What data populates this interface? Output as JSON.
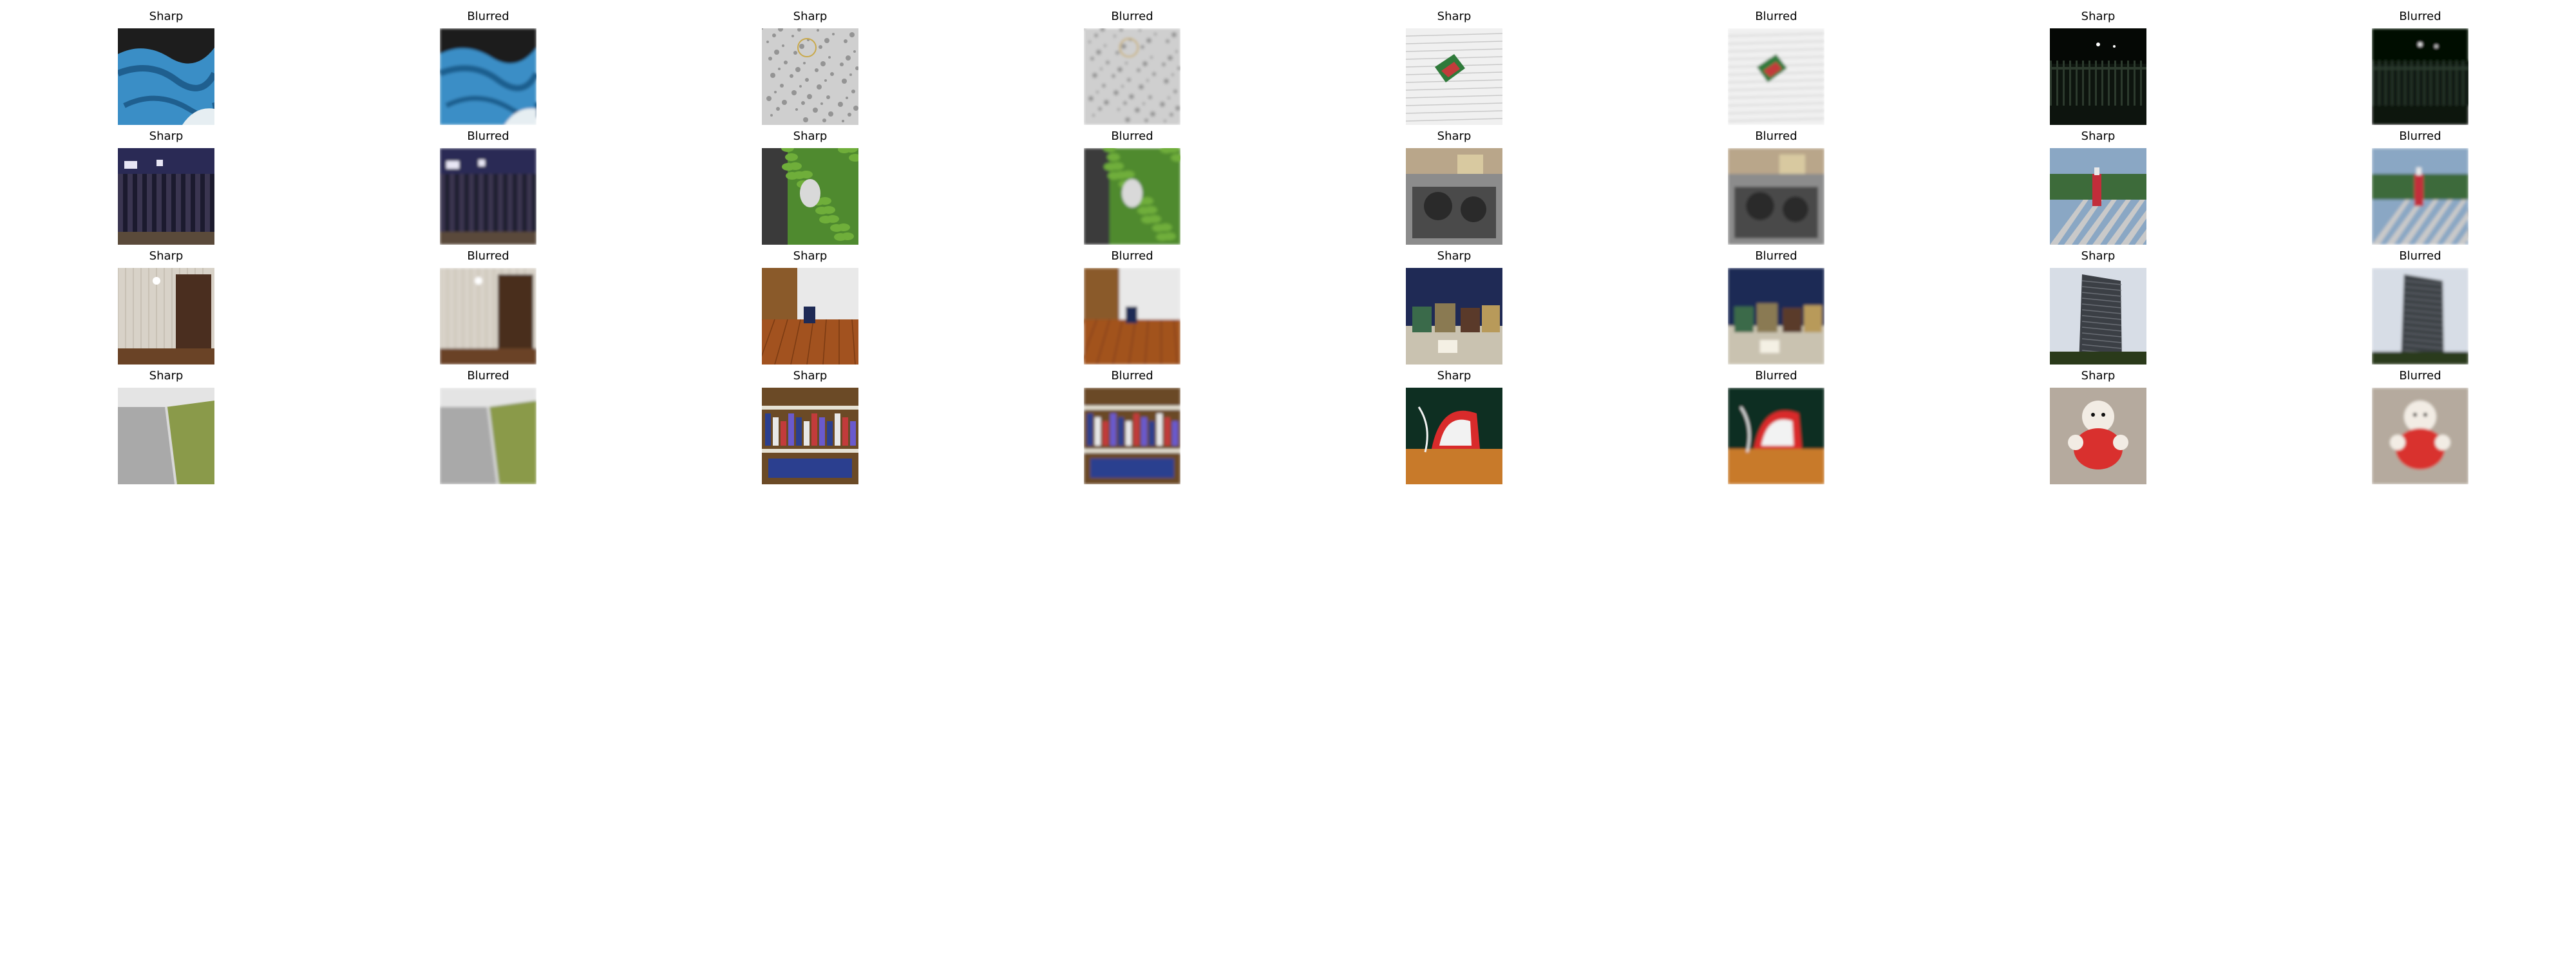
{
  "panels": [
    {
      "title": "Sharp",
      "scene": "blue-fabric",
      "blurred": false,
      "colors": [
        "#3a8ec6",
        "#1f5f8f"
      ]
    },
    {
      "title": "Blurred",
      "scene": "blue-fabric",
      "blurred": true,
      "colors": [
        "#3a8ec6",
        "#1f5f8f"
      ]
    },
    {
      "title": "Sharp",
      "scene": "patterned-cloth",
      "blurred": false,
      "colors": [
        "#cfcfcf",
        "#6d6d6d"
      ]
    },
    {
      "title": "Blurred",
      "scene": "patterned-cloth",
      "blurred": true,
      "colors": [
        "#cfcfcf",
        "#6d6d6d"
      ]
    },
    {
      "title": "Sharp",
      "scene": "wall-with-flag",
      "blurred": false,
      "colors": [
        "#f0f0f0",
        "#c23b3b"
      ]
    },
    {
      "title": "Blurred",
      "scene": "wall-with-flag",
      "blurred": true,
      "colors": [
        "#f0f0f0",
        "#c23b3b"
      ]
    },
    {
      "title": "Sharp",
      "scene": "night-fence",
      "blurred": false,
      "colors": [
        "#0d140e",
        "#2c3a2d"
      ]
    },
    {
      "title": "Blurred",
      "scene": "night-fence",
      "blurred": true,
      "colors": [
        "#0d140e",
        "#2c3a2d"
      ]
    },
    {
      "title": "Sharp",
      "scene": "night-street",
      "blurred": false,
      "colors": [
        "#1b1a2e",
        "#e8e6f5"
      ]
    },
    {
      "title": "Blurred",
      "scene": "night-street",
      "blurred": true,
      "colors": [
        "#1b1a2e",
        "#e8e6f5"
      ]
    },
    {
      "title": "Sharp",
      "scene": "garden-cat",
      "blurred": false,
      "colors": [
        "#4f8a2f",
        "#d9d9d9"
      ]
    },
    {
      "title": "Blurred",
      "scene": "garden-cat",
      "blurred": true,
      "colors": [
        "#4f8a2f",
        "#d9d9d9"
      ]
    },
    {
      "title": "Sharp",
      "scene": "stove-top",
      "blurred": false,
      "colors": [
        "#8c8c8c",
        "#2a2a2a"
      ]
    },
    {
      "title": "Blurred",
      "scene": "stove-top",
      "blurred": true,
      "colors": [
        "#8c8c8c",
        "#2a2a2a"
      ]
    },
    {
      "title": "Sharp",
      "scene": "bottle-on-deck",
      "blurred": false,
      "colors": [
        "#8aa7c4",
        "#c9c9c9"
      ]
    },
    {
      "title": "Blurred",
      "scene": "bottle-on-deck",
      "blurred": true,
      "colors": [
        "#8aa7c4",
        "#c9c9c9"
      ]
    },
    {
      "title": "Sharp",
      "scene": "room-cabinet",
      "blurred": false,
      "colors": [
        "#d8d2c8",
        "#4a2e1f"
      ]
    },
    {
      "title": "Blurred",
      "scene": "room-cabinet",
      "blurred": true,
      "colors": [
        "#d8d2c8",
        "#4a2e1f"
      ]
    },
    {
      "title": "Sharp",
      "scene": "wooden-floor",
      "blurred": false,
      "colors": [
        "#e9e9e9",
        "#a2521f"
      ]
    },
    {
      "title": "Blurred",
      "scene": "wooden-floor",
      "blurred": true,
      "colors": [
        "#e9e9e9",
        "#a2521f"
      ]
    },
    {
      "title": "Sharp",
      "scene": "jars-on-table",
      "blurred": false,
      "colors": [
        "#1f2a55",
        "#8a7a52"
      ]
    },
    {
      "title": "Blurred",
      "scene": "jars-on-table",
      "blurred": true,
      "colors": [
        "#1f2a55",
        "#8a7a52"
      ]
    },
    {
      "title": "Sharp",
      "scene": "tower-block",
      "blurred": false,
      "colors": [
        "#d7dde6",
        "#3b3f45"
      ]
    },
    {
      "title": "Blurred",
      "scene": "tower-block",
      "blurred": true,
      "colors": [
        "#d7dde6",
        "#3b3f45"
      ]
    },
    {
      "title": "Sharp",
      "scene": "sidewalk-grass",
      "blurred": false,
      "colors": [
        "#a9a9a9",
        "#8a9a4a"
      ]
    },
    {
      "title": "Blurred",
      "scene": "sidewalk-grass",
      "blurred": true,
      "colors": [
        "#a9a9a9",
        "#8a9a4a"
      ]
    },
    {
      "title": "Sharp",
      "scene": "bookshelf",
      "blurred": false,
      "colors": [
        "#6b4a26",
        "#2b3f8f"
      ]
    },
    {
      "title": "Blurred",
      "scene": "bookshelf",
      "blurred": true,
      "colors": [
        "#6b4a26",
        "#2b3f8f"
      ]
    },
    {
      "title": "Sharp",
      "scene": "clothes-iron",
      "blurred": false,
      "colors": [
        "#0e2f22",
        "#d92b2b"
      ]
    },
    {
      "title": "Blurred",
      "scene": "clothes-iron",
      "blurred": true,
      "colors": [
        "#0e2f22",
        "#d92b2b"
      ]
    },
    {
      "title": "Sharp",
      "scene": "plush-toy",
      "blurred": false,
      "colors": [
        "#b5aa9e",
        "#d9302e"
      ]
    },
    {
      "title": "Blurred",
      "scene": "plush-toy",
      "blurred": true,
      "colors": [
        "#b5aa9e",
        "#d9302e"
      ]
    }
  ]
}
